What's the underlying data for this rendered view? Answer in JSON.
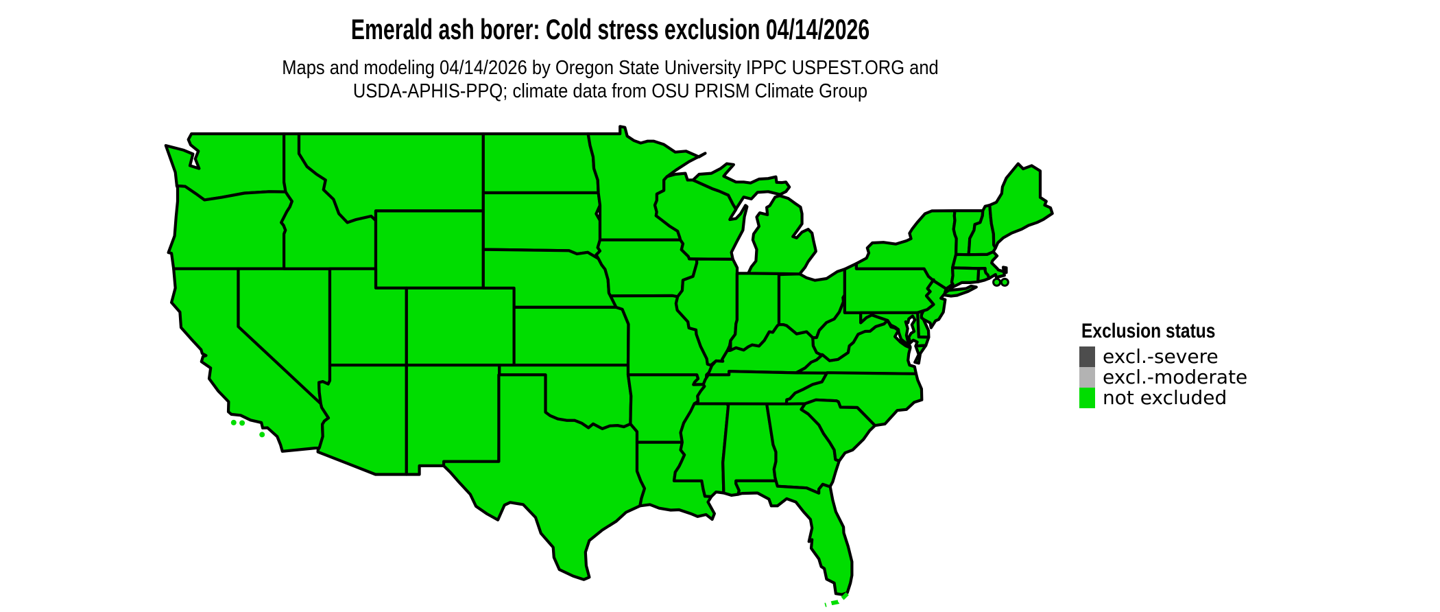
{
  "page": {
    "background_color": "#ffffff"
  },
  "header": {
    "title": "Emerald ash borer: Cold stress exclusion 04/14/2026",
    "subtitle_lines": [
      "Maps and modeling 04/14/2026 by Oregon State University IPPC USPEST.ORG and",
      "USDA-APHIS-PPQ; climate data from OSU PRISM Climate Group"
    ]
  },
  "legend": {
    "title": "Exclusion status",
    "items": [
      {
        "label": "excl.-severe",
        "color": "#4d4d4d"
      },
      {
        "label": "excl.-moderate",
        "color": "#b3b3b3"
      },
      {
        "label": "not excluded",
        "color": "#00dd00"
      }
    ]
  },
  "map": {
    "region_shown": "contiguous United States with state borders",
    "fill_status_label": "not excluded",
    "fill_color": "#00dd00",
    "outline_color": "#000000"
  }
}
